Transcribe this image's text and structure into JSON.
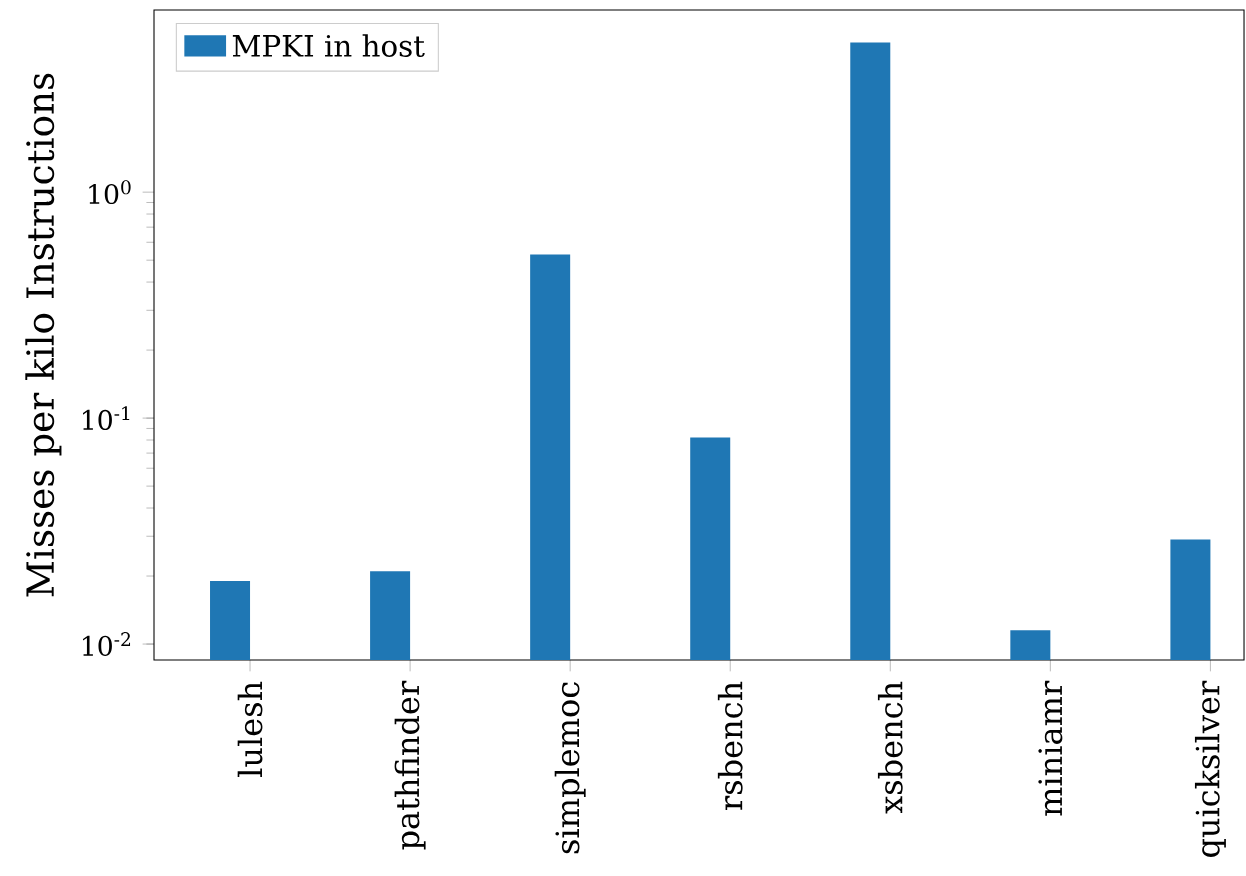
{
  "chart_data": {
    "type": "bar",
    "ylabel": "Misses per kilo Instructions",
    "categories": [
      "lulesh",
      "pathfinder",
      "simplemoc",
      "rsbench",
      "xsbench",
      "miniamr",
      "quicksilver"
    ],
    "series": [
      {
        "name": "MPKI in host",
        "color": "#1f77b4",
        "values": [
          0.019,
          0.021,
          0.53,
          0.082,
          4.6,
          0.0115,
          0.029
        ]
      }
    ],
    "log": "y",
    "ylim": [
      0.0085,
      6.4
    ],
    "yticks": [
      {
        "value": 0.01,
        "label": "10$^{-2}$"
      },
      {
        "value": 0.1,
        "label": "10$^{-1}$"
      },
      {
        "value": 1,
        "label": "10$^{0}$"
      }
    ],
    "legend": "top left"
  }
}
